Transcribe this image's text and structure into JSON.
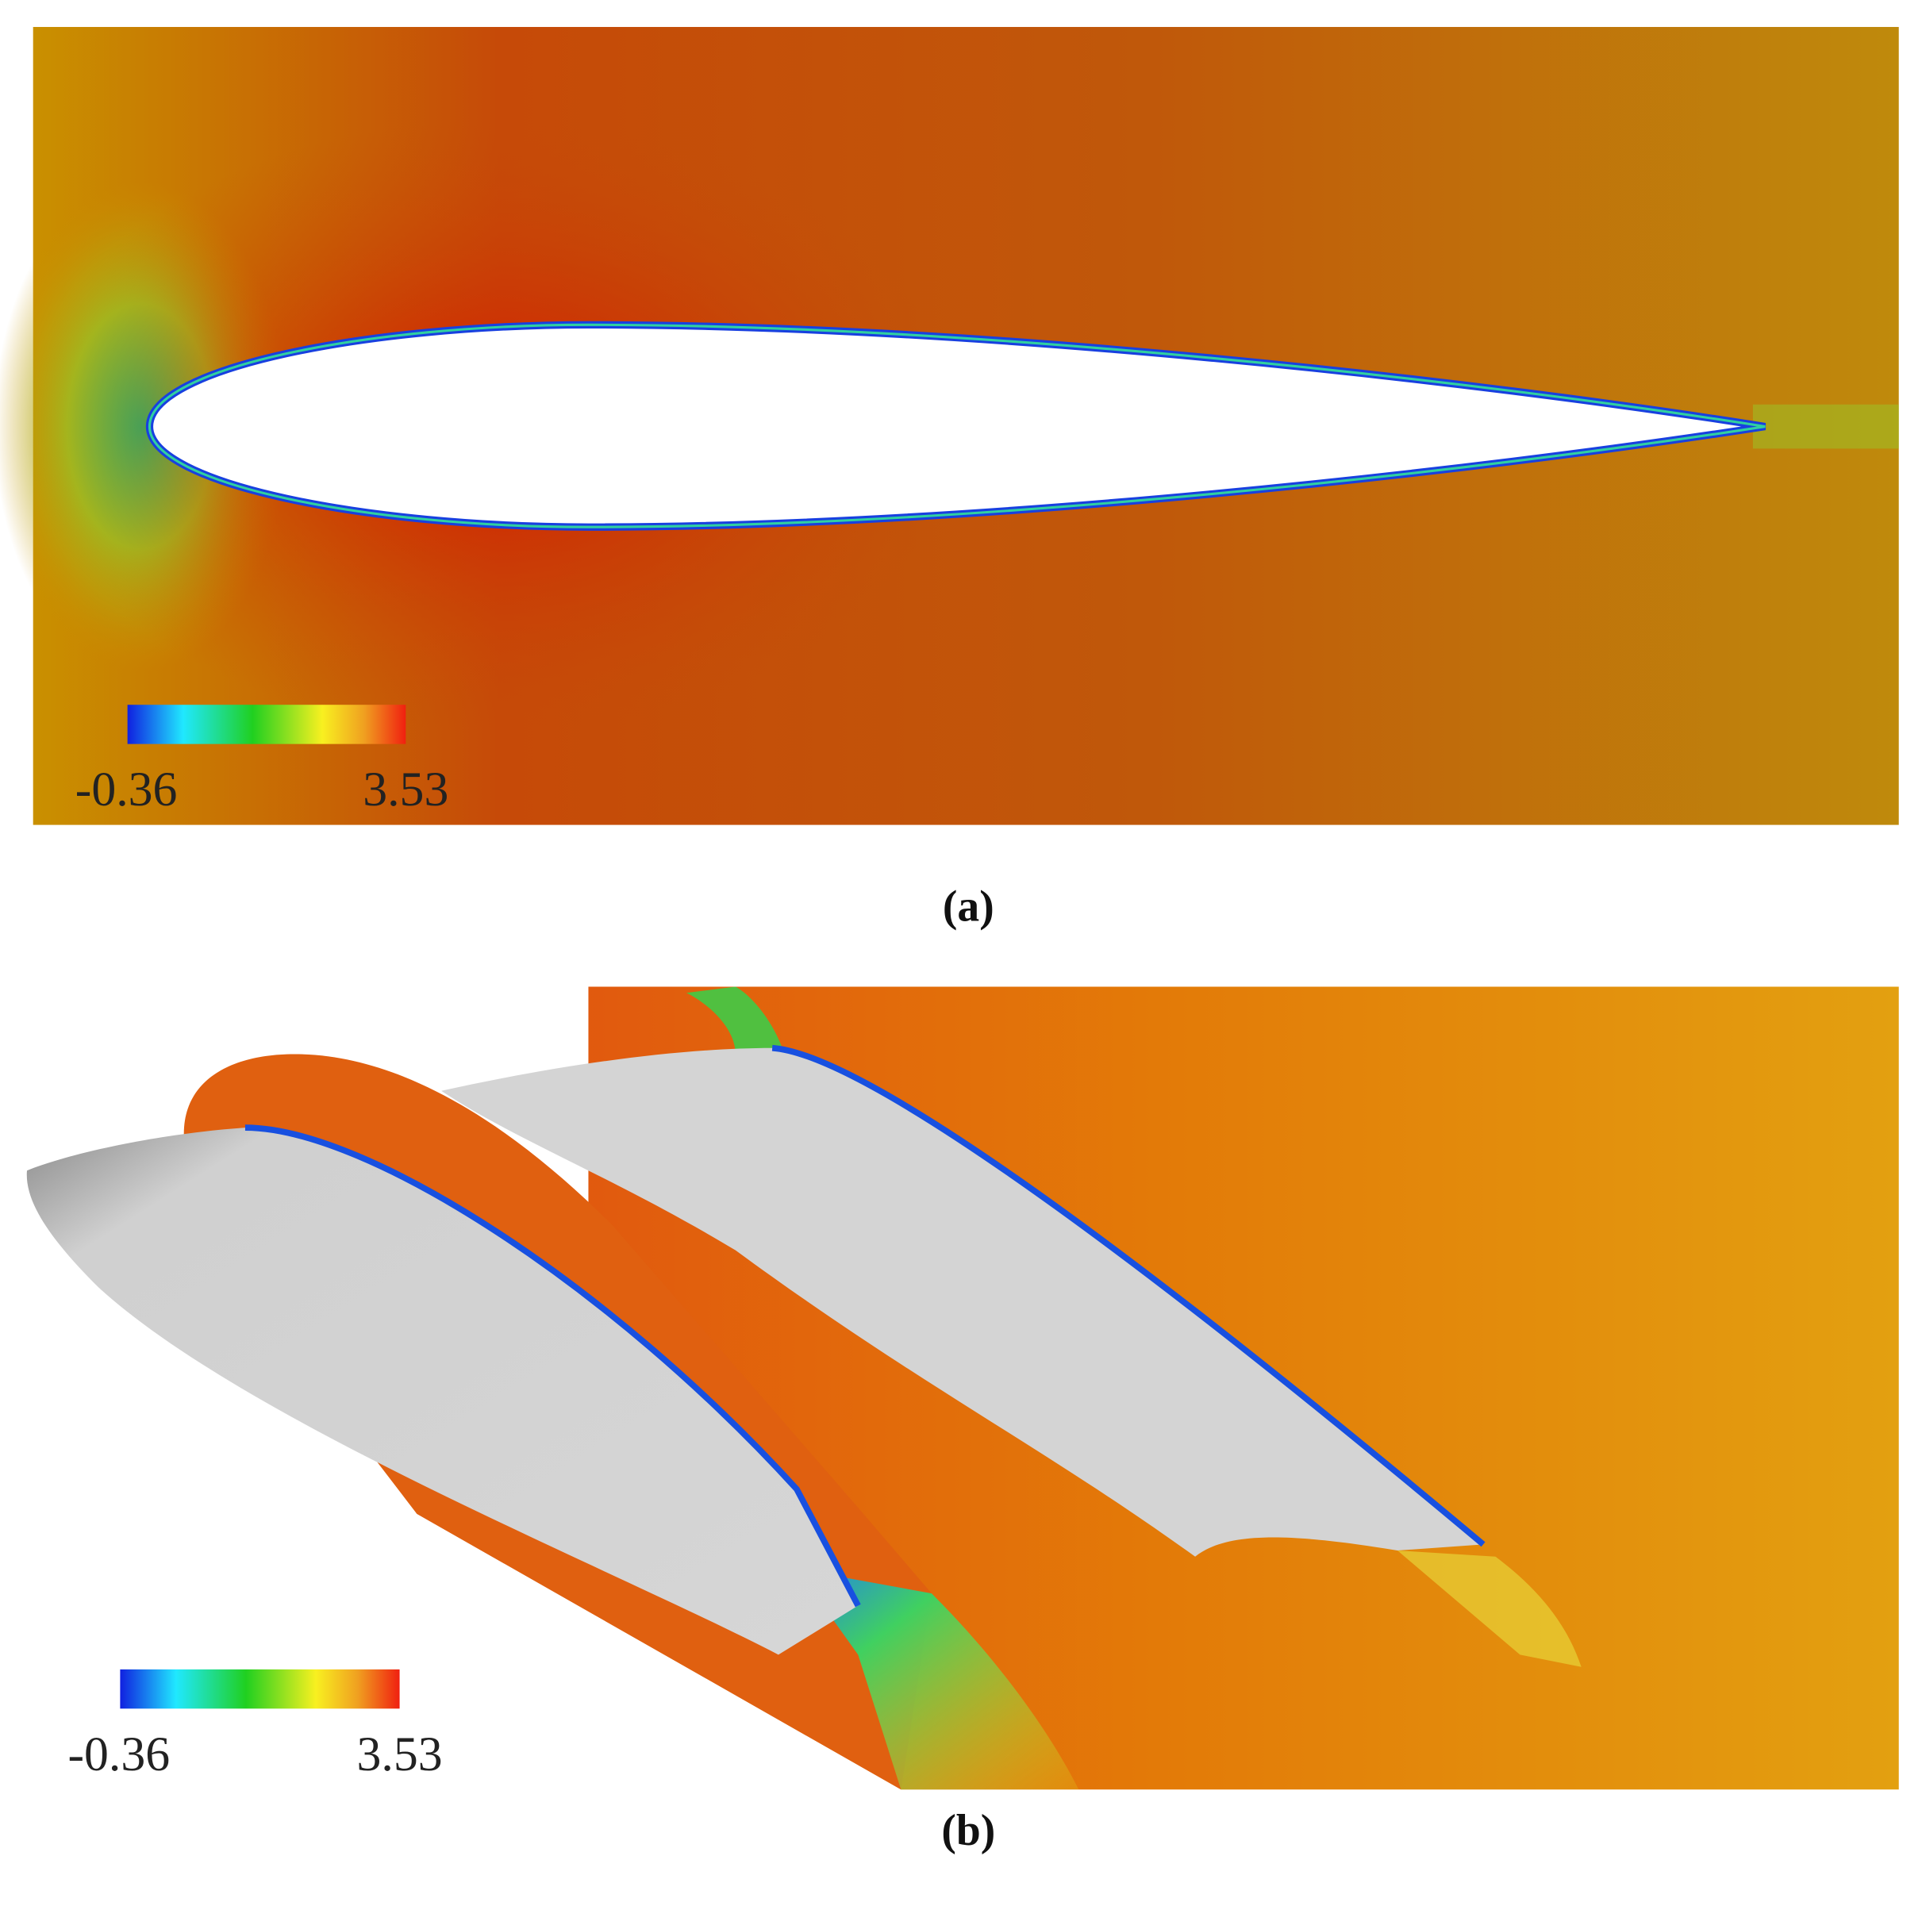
{
  "panels": [
    {
      "caption": "(a)",
      "colorbar": {
        "min": -0.36,
        "max": 3.53
      }
    },
    {
      "caption": "(b)",
      "colorbar": {
        "min": -0.36,
        "max": 3.53
      }
    }
  ]
}
